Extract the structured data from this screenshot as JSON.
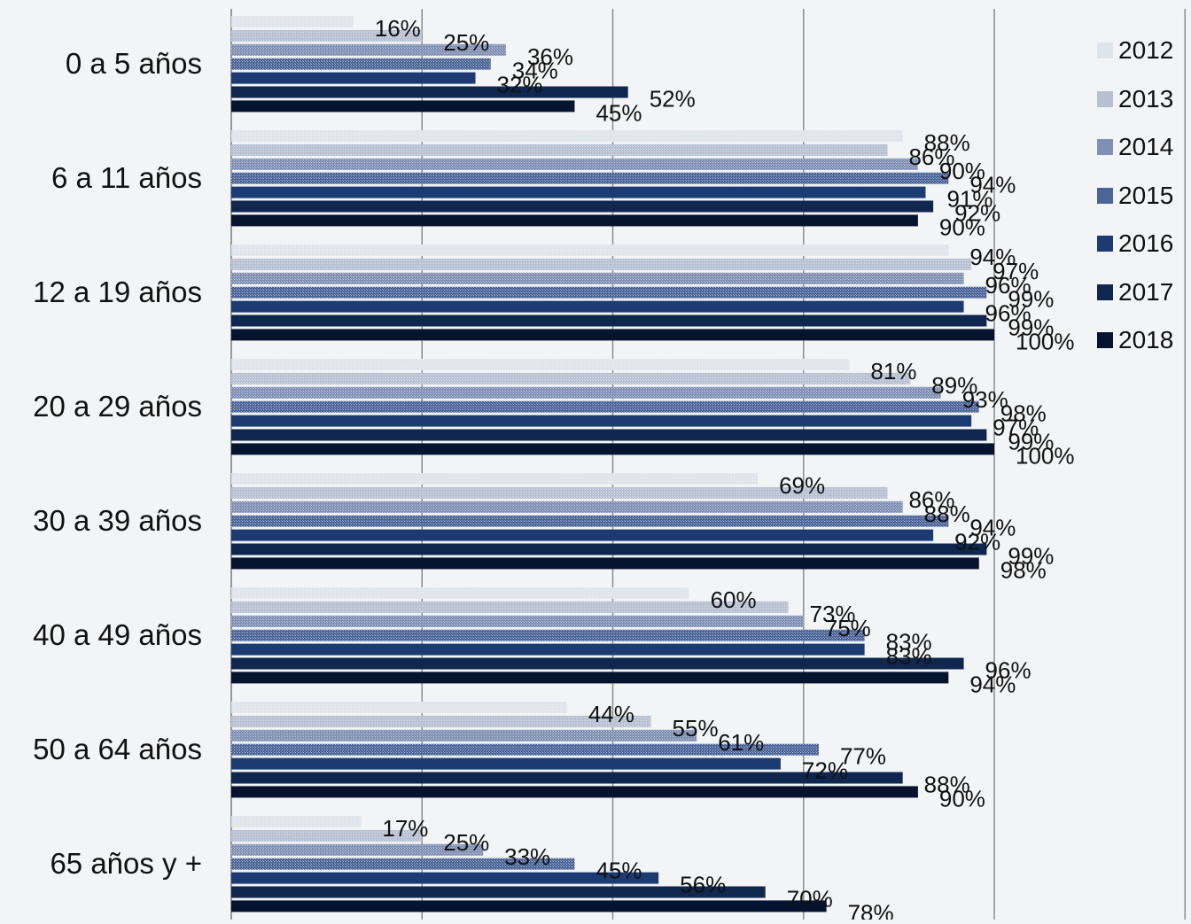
{
  "chart_data": {
    "type": "bar",
    "orientation": "horizontal",
    "categories": [
      "0 a 5 años",
      "6 a 11 años",
      "12 a 19 años",
      "20 a 29 años",
      "30 a 39 años",
      "40 a 49 años",
      "50 a 64 años",
      "65 años y +"
    ],
    "series": [
      {
        "name": "2012",
        "color": "#dfe3ea",
        "values": [
          16,
          88,
          94,
          81,
          69,
          60,
          44,
          17
        ]
      },
      {
        "name": "2013",
        "color": "#b6c0d2",
        "values": [
          25,
          86,
          97,
          89,
          86,
          73,
          55,
          25
        ]
      },
      {
        "name": "2014",
        "color": "#7f90b5",
        "values": [
          36,
          90,
          96,
          93,
          88,
          75,
          61,
          33
        ]
      },
      {
        "name": "2015",
        "color": "#4c6599",
        "values": [
          34,
          94,
          99,
          98,
          94,
          83,
          77,
          45
        ]
      },
      {
        "name": "2016",
        "color": "#1c3b73",
        "values": [
          32,
          91,
          96,
          97,
          92,
          83,
          72,
          56
        ]
      },
      {
        "name": "2017",
        "color": "#0f264f",
        "values": [
          52,
          92,
          99,
          99,
          99,
          96,
          88,
          70
        ]
      },
      {
        "name": "2018",
        "color": "#07142f",
        "values": [
          45,
          90,
          100,
          100,
          98,
          94,
          90,
          78
        ]
      }
    ],
    "value_suffix": "%",
    "xlim": [
      0,
      125
    ],
    "grid": true,
    "legend_position": "right",
    "title": "",
    "xlabel": "",
    "ylabel": ""
  }
}
